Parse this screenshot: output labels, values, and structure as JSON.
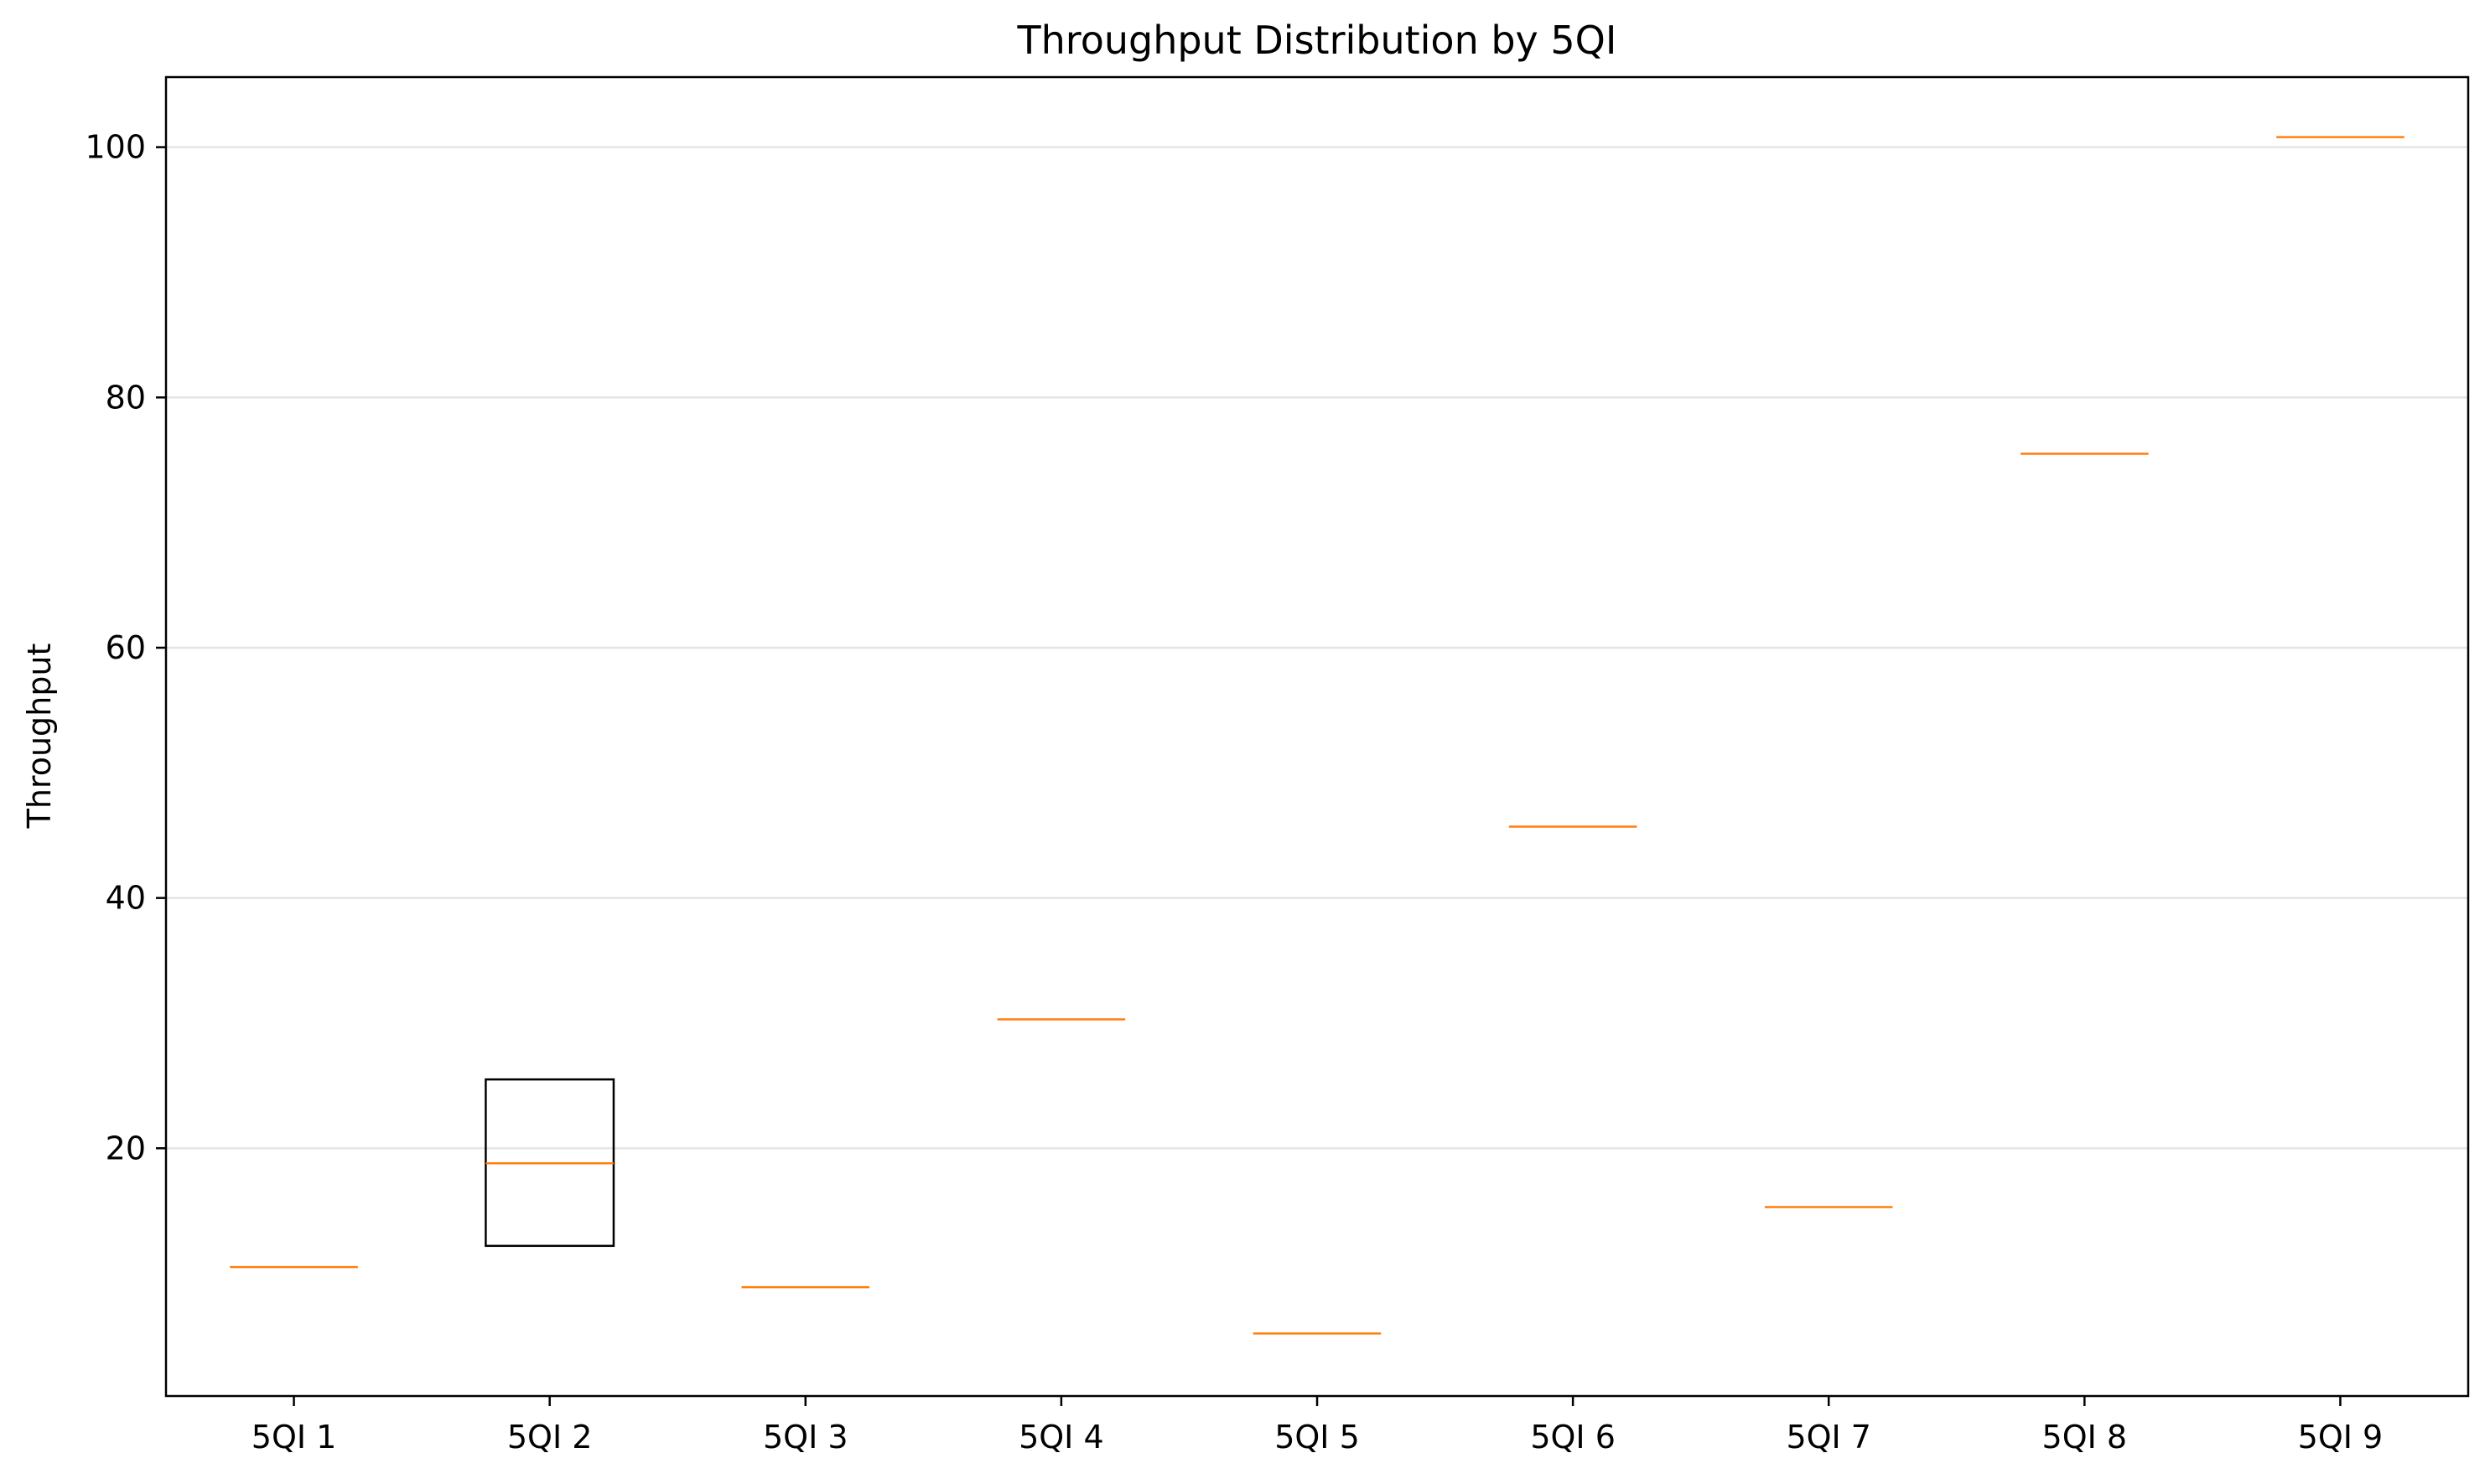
{
  "chart_data": {
    "type": "box",
    "title": "Throughput Distribution by 5QI",
    "xlabel": "",
    "ylabel": "Throughput",
    "categories": [
      "5QI 1",
      "5QI 2",
      "5QI 3",
      "5QI 4",
      "5QI 5",
      "5QI 6",
      "5QI 7",
      "5QI 8",
      "5QI 9"
    ],
    "boxes": [
      {
        "q1": 10.5,
        "median": 10.5,
        "q3": 10.5
      },
      {
        "q1": 12.2,
        "median": 18.8,
        "q3": 25.5
      },
      {
        "q1": 8.9,
        "median": 8.9,
        "q3": 8.9
      },
      {
        "q1": 30.3,
        "median": 30.3,
        "q3": 30.3
      },
      {
        "q1": 5.2,
        "median": 5.2,
        "q3": 5.2
      },
      {
        "q1": 45.7,
        "median": 45.7,
        "q3": 45.7
      },
      {
        "q1": 15.3,
        "median": 15.3,
        "q3": 15.3
      },
      {
        "q1": 75.5,
        "median": 75.5,
        "q3": 75.5
      },
      {
        "q1": 100.8,
        "median": 100.8,
        "q3": 100.8
      }
    ],
    "ylim": [
      0.2,
      105.6
    ],
    "yticks": [
      20,
      40,
      60,
      80,
      100
    ],
    "grid": "y",
    "colors": {
      "box": "#000000",
      "median": "#ff7f0e",
      "grid": "#e5e5e5",
      "frame": "#000000"
    }
  }
}
